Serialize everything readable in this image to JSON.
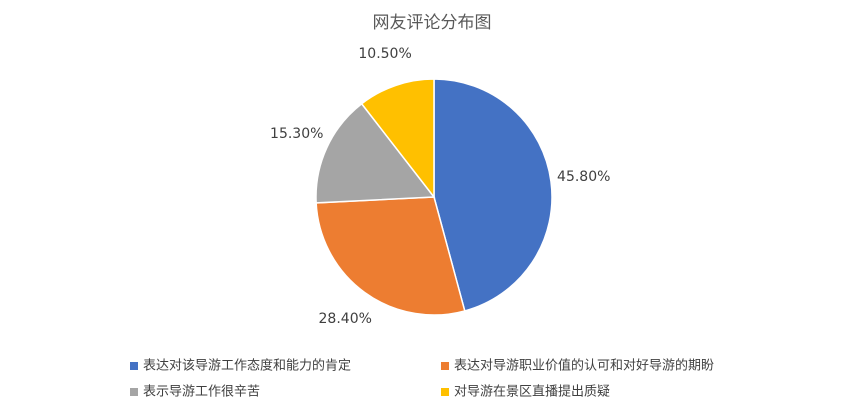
{
  "chart_data": {
    "type": "pie",
    "title": "网友评论分布图",
    "categories": [
      "表达对该导游工作态度和能力的肯定",
      "表达对导游职业价值的认可和对好导游的期盼",
      "表示导游工作很辛苦",
      "对导游在景区直播提出质疑"
    ],
    "values": [
      45.8,
      28.4,
      15.3,
      10.5
    ],
    "value_labels": [
      "45.80%",
      "28.40%",
      "15.30%",
      "10.50%"
    ],
    "colors": [
      "#4472c4",
      "#ed7d31",
      "#a5a5a5",
      "#ffc000"
    ],
    "legend": "bottom"
  }
}
